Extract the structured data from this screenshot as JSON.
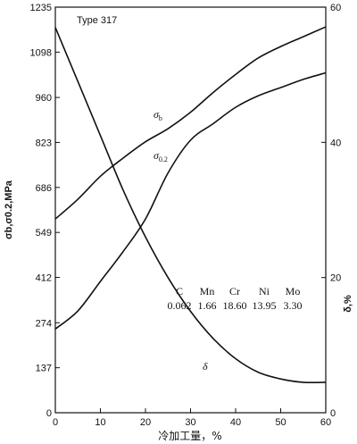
{
  "chart_data": {
    "type": "line",
    "title": "",
    "xlabel": "冷加工量，%",
    "ylabel": "σb,σ0.2,MPa",
    "y2label": "δ,%",
    "xlim": [
      0,
      60
    ],
    "ylim": [
      0,
      1235
    ],
    "y2lim": [
      0,
      60
    ],
    "x_ticks": [
      0,
      10,
      20,
      30,
      40,
      50,
      60
    ],
    "y_ticks": [
      0,
      137,
      274,
      412,
      549,
      686,
      823,
      960,
      1098,
      1235
    ],
    "y2_ticks": [
      0,
      20,
      40,
      60
    ],
    "grid": false,
    "series": [
      {
        "name": "σb",
        "label_main": "σ",
        "label_sub": "b",
        "axis": "left",
        "x": [
          0,
          5,
          10,
          15,
          20,
          25,
          30,
          35,
          40,
          45,
          50,
          55,
          60
        ],
        "y": [
          590,
          650,
          720,
          775,
          825,
          865,
          915,
          975,
          1030,
          1080,
          1115,
          1145,
          1175
        ]
      },
      {
        "name": "σ0.2",
        "label_main": "σ",
        "label_sub": "0.2",
        "axis": "left",
        "x": [
          0,
          5,
          10,
          15,
          20,
          25,
          30,
          35,
          40,
          45,
          50,
          55,
          60
        ],
        "y": [
          255,
          310,
          400,
          490,
          590,
          730,
          830,
          880,
          930,
          965,
          990,
          1015,
          1035
        ]
      },
      {
        "name": "δ",
        "label_main": "δ",
        "label_sub": "",
        "axis": "right",
        "x": [
          0,
          5,
          10,
          15,
          20,
          25,
          30,
          35,
          40,
          45,
          50,
          55,
          60
        ],
        "y": [
          57,
          49,
          41,
          33,
          26,
          20,
          15,
          11,
          8,
          6,
          5,
          4.5,
          4.5
        ]
      }
    ],
    "annotations": {
      "type_label": "Type 317",
      "composition": {
        "elements": [
          "C",
          "Mn",
          "Cr",
          "Ni",
          "Mo"
        ],
        "values": [
          "0.062",
          "1.66",
          "18.60",
          "13.95",
          "3.30"
        ]
      }
    }
  }
}
